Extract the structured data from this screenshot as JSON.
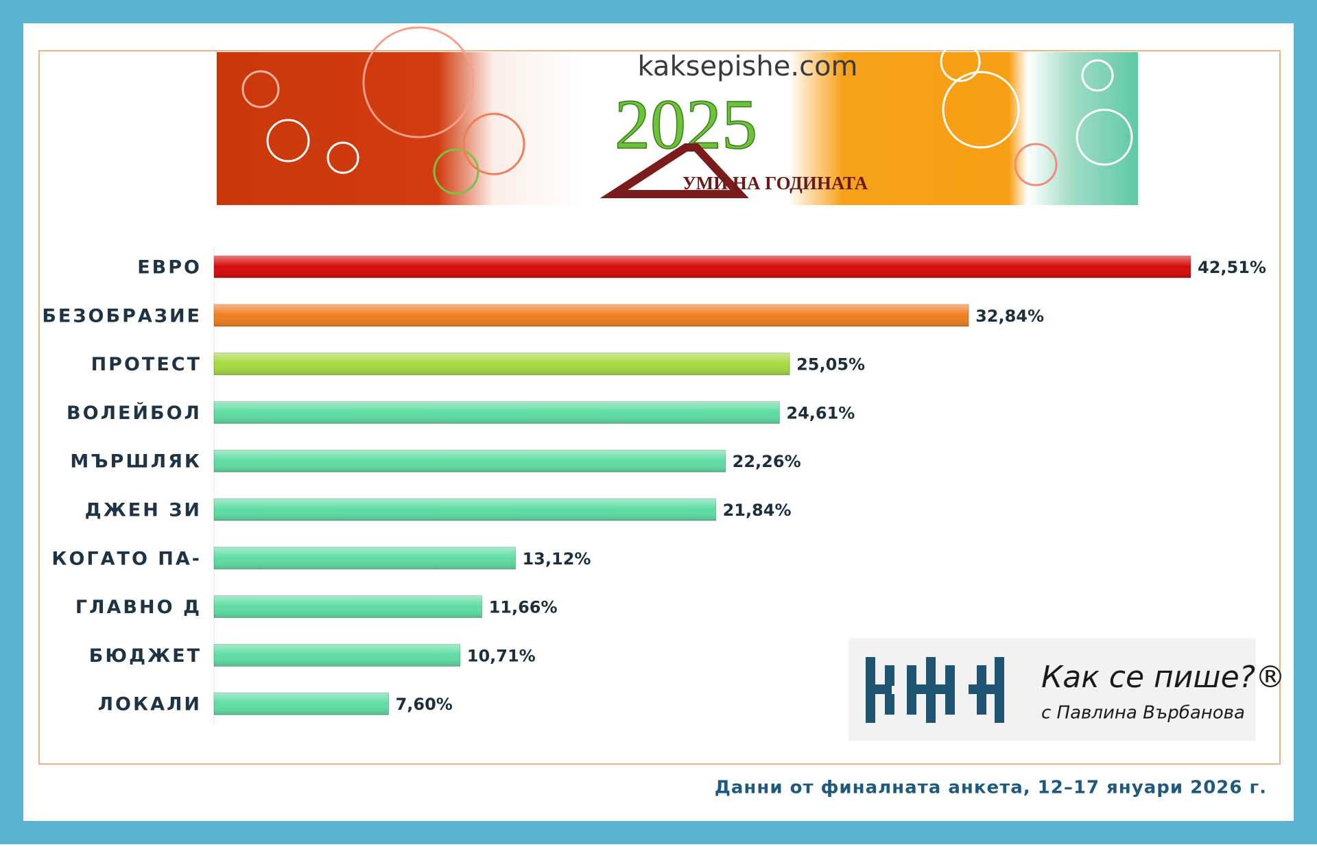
{
  "banner": {
    "site": "kaksepishe.com",
    "year": "2025",
    "title": "УМИ НА ГОДИНАТА"
  },
  "chart_data": {
    "type": "bar",
    "orientation": "horizontal",
    "categories": [
      "ЕВРО",
      "БЕЗОБРАЗИЕ",
      "ПРОТЕСТ",
      "ВОЛЕЙБОЛ",
      "МЪРШЛЯК",
      "ДЖЕН ЗИ",
      "КОГАТО ПА-",
      "ГЛАВНО Д",
      "БЮДЖЕТ",
      "ЛОКАЛИ"
    ],
    "values": [
      42.51,
      32.84,
      25.05,
      24.61,
      22.26,
      21.84,
      13.12,
      11.66,
      10.71,
      7.6
    ],
    "value_labels": [
      "42,51%",
      "32,84%",
      "25,05%",
      "24,61%",
      "22,26%",
      "21,84%",
      "13,12%",
      "11,66%",
      "10,71%",
      "7,60%"
    ],
    "colors": [
      "#d40a0a",
      "#f07d1f",
      "#a5d93f",
      "#5edca2",
      "#5edca2",
      "#5edca2",
      "#5edca2",
      "#5edca2",
      "#5edca2",
      "#5edca2"
    ]
  },
  "logo": {
    "title": "Как се пише?®",
    "subtitle": "с Павлина Върбанова"
  },
  "footer": "Данни от финалната анкета, 12–17 януари 2026 г."
}
